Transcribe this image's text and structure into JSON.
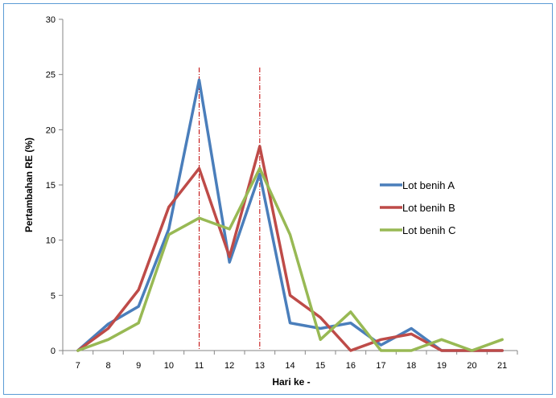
{
  "chart_data": {
    "type": "line",
    "xlabel": "Hari ke -",
    "ylabel": "Pertambahan RE (%)",
    "x": [
      7,
      8,
      9,
      10,
      11,
      12,
      13,
      14,
      15,
      16,
      17,
      18,
      19,
      20,
      21
    ],
    "ylim": [
      0,
      30
    ],
    "yticks": [
      0,
      5,
      10,
      15,
      20,
      25,
      30
    ],
    "grid": false,
    "legend_position": "right",
    "series": [
      {
        "name": "Lot benih A",
        "color": "#4a7ebb",
        "values": [
          0,
          2.4,
          4,
          11,
          24.5,
          8,
          16,
          2.5,
          2,
          2.5,
          0.5,
          2,
          0,
          0,
          0
        ]
      },
      {
        "name": "Lot benih B",
        "color": "#be4b48",
        "values": [
          0,
          2,
          5.5,
          13,
          16.5,
          8.5,
          18.5,
          5,
          3,
          0,
          1,
          1.5,
          0,
          0,
          0
        ]
      },
      {
        "name": "Lot benih C",
        "color": "#98b954",
        "values": [
          0,
          1,
          2.5,
          10.5,
          12,
          11,
          16.5,
          10.5,
          1,
          3.5,
          0,
          0,
          1,
          0,
          1
        ]
      }
    ],
    "reference_lines": [
      {
        "x": 11,
        "color": "#c00000",
        "style": "dash-dot"
      },
      {
        "x": 13,
        "color": "#c00000",
        "style": "dash-dot"
      }
    ]
  }
}
